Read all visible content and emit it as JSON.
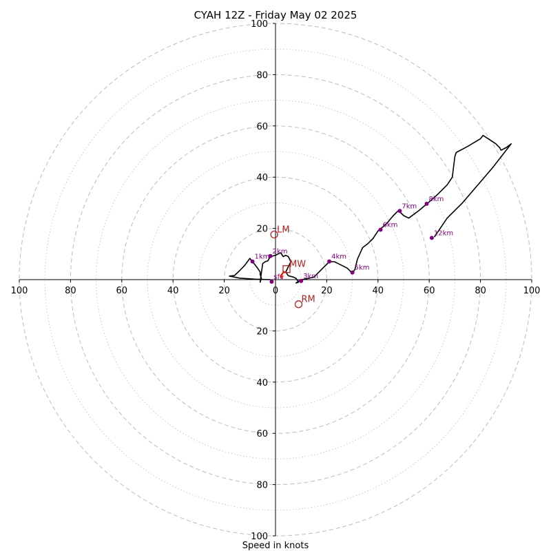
{
  "chart_data": {
    "type": "hodograph",
    "title": "CYAH 12Z - Friday May 02 2025",
    "xlabel": "Speed in knots",
    "units": "knots",
    "range": [
      -100,
      100
    ],
    "ring_step_major": 20,
    "ring_step_minor": 10,
    "tick_values": [
      100,
      80,
      60,
      40,
      20,
      0,
      20,
      40,
      60,
      80,
      100
    ],
    "grid": true,
    "colors": {
      "trace": "#000000",
      "height_marker": "#800080",
      "storm_motion": "#b22222",
      "grid": "#bbbbbb"
    },
    "trace": [
      [
        -2,
        0
      ],
      [
        -8,
        0.2
      ],
      [
        -14,
        0.6
      ],
      [
        -18,
        1.4
      ],
      [
        -16,
        1.6
      ],
      [
        -14,
        3.5
      ],
      [
        -12,
        5.6
      ],
      [
        -10,
        8.3
      ],
      [
        -9,
        7
      ],
      [
        -8,
        5.8
      ],
      [
        -7,
        4.5
      ],
      [
        -6,
        3
      ],
      [
        -6,
        2
      ],
      [
        -5.5,
        0.5
      ],
      [
        -6,
        -1
      ],
      [
        -5,
        6.3
      ],
      [
        -4,
        7
      ],
      [
        -3,
        7.3
      ],
      [
        -2,
        9
      ],
      [
        0,
        9.5
      ],
      [
        2,
        10.5
      ],
      [
        3,
        9
      ],
      [
        4,
        9.5
      ],
      [
        5,
        9
      ],
      [
        6,
        7
      ],
      [
        5,
        5
      ],
      [
        4,
        3
      ],
      [
        5,
        1.5
      ],
      [
        7,
        1
      ],
      [
        8,
        0.5
      ],
      [
        9,
        -1
      ],
      [
        8,
        -1.3
      ],
      [
        10,
        0
      ],
      [
        12,
        0.3
      ],
      [
        15,
        1
      ],
      [
        18,
        4
      ],
      [
        21,
        7
      ],
      [
        23,
        7
      ],
      [
        25,
        6
      ],
      [
        28,
        4.5
      ],
      [
        30,
        2.5
      ],
      [
        31,
        4
      ],
      [
        32,
        8
      ],
      [
        34,
        12.5
      ],
      [
        36,
        14
      ],
      [
        38,
        16
      ],
      [
        40,
        19
      ],
      [
        43,
        21.5
      ],
      [
        46,
        25
      ],
      [
        48,
        27
      ],
      [
        50,
        25
      ],
      [
        52,
        24
      ],
      [
        56,
        27
      ],
      [
        59,
        29.5
      ],
      [
        63,
        33
      ],
      [
        67,
        37
      ],
      [
        69,
        40
      ],
      [
        70,
        48
      ],
      [
        70.5,
        49.6
      ],
      [
        75,
        52
      ],
      [
        80,
        55
      ],
      [
        81,
        56.3
      ],
      [
        83,
        55
      ],
      [
        86,
        53
      ],
      [
        87.5,
        51.5
      ],
      [
        88,
        50.5
      ],
      [
        90,
        51.5
      ],
      [
        92,
        53
      ],
      [
        85,
        44
      ],
      [
        79,
        37
      ],
      [
        73,
        30
      ],
      [
        67,
        24
      ],
      [
        62,
        16.6
      ]
    ],
    "height_markers": [
      {
        "label": "sfc",
        "u": -1.5,
        "v": -0.8
      },
      {
        "label": "1km",
        "u": -9,
        "v": 7.1
      },
      {
        "label": "2km",
        "u": -2,
        "v": 9.2
      },
      {
        "label": "3km",
        "u": 10,
        "v": -0.5
      },
      {
        "label": "4km",
        "u": 21,
        "v": 7.1
      },
      {
        "label": "5km",
        "u": 30,
        "v": 2.8
      },
      {
        "label": "6km",
        "u": 41,
        "v": 19.5
      },
      {
        "label": "7km",
        "u": 48.5,
        "v": 26.8
      },
      {
        "label": "8km",
        "u": 59,
        "v": 29.6
      },
      {
        "label": "12km",
        "u": 61,
        "v": 16.3
      }
    ],
    "storm_motion": [
      {
        "label": "LM",
        "u": -0.5,
        "v": 17.6
      },
      {
        "label": "RM",
        "u": 9,
        "v": -9.6
      },
      {
        "label": "MW",
        "u": 4.3,
        "v": 4.1
      }
    ]
  }
}
